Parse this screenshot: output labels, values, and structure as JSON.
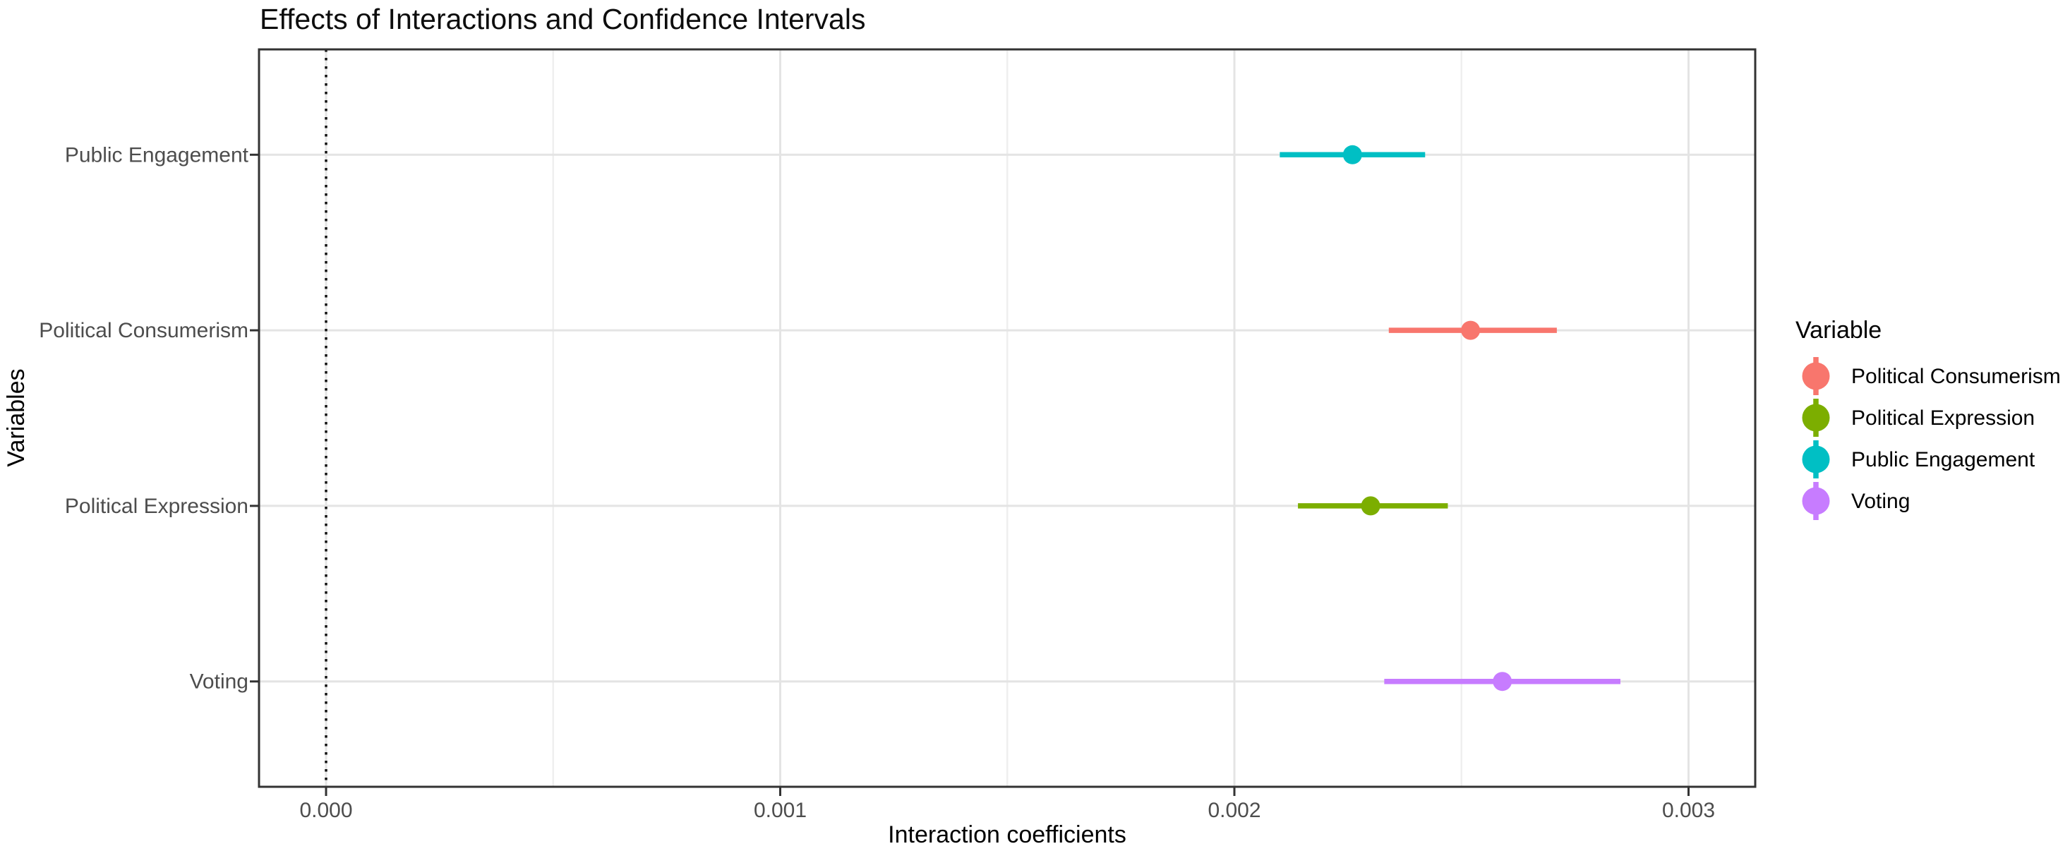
{
  "chart_data": {
    "type": "pointrange",
    "title": "Effects of Interactions and Confidence Intervals",
    "xlabel": "Interaction coefficients",
    "ylabel": "Variables",
    "categories": [
      "Public Engagement",
      "Political Consumerism",
      "Political Expression",
      "Voting"
    ],
    "rows": [
      {
        "label": "Public Engagement",
        "color": "#00BFC4",
        "low": 0.0021,
        "mid": 0.00226,
        "high": 0.00242
      },
      {
        "label": "Political Consumerism",
        "color": "#F8766D",
        "low": 0.00234,
        "mid": 0.00252,
        "high": 0.00271
      },
      {
        "label": "Political Expression",
        "color": "#7CAE00",
        "low": 0.00214,
        "mid": 0.0023,
        "high": 0.00247
      },
      {
        "label": "Voting",
        "color": "#C77CFF",
        "low": 0.00233,
        "mid": 0.00259,
        "high": 0.00285
      }
    ],
    "x_ticks": [
      {
        "value": 0.0,
        "label": "0.000"
      },
      {
        "value": 0.001,
        "label": "0.001"
      },
      {
        "value": 0.002,
        "label": "0.002"
      },
      {
        "value": 0.003,
        "label": "0.003"
      }
    ],
    "x_minor_ticks": [
      0.0005,
      0.0015,
      0.0025
    ],
    "xlim": [
      -0.000148,
      0.003149
    ],
    "reference_line": {
      "x": 0,
      "style": "dotted",
      "color": "#111111"
    },
    "grid": true,
    "legend": {
      "title": "Variable",
      "position": "right",
      "items": [
        {
          "label": "Political Consumerism",
          "color": "#F8766D"
        },
        {
          "label": "Political Expression",
          "color": "#7CAE00"
        },
        {
          "label": "Public Engagement",
          "color": "#00BFC4"
        },
        {
          "label": "Voting",
          "color": "#C77CFF"
        }
      ]
    },
    "style_colors": {
      "panel_background": "#ffffff",
      "panel_border": "#333333",
      "grid_major": "#e4e4e4",
      "grid_minor": "#efefef",
      "tick_mark": "#333333",
      "axis_text": "#4d4d4d"
    }
  }
}
